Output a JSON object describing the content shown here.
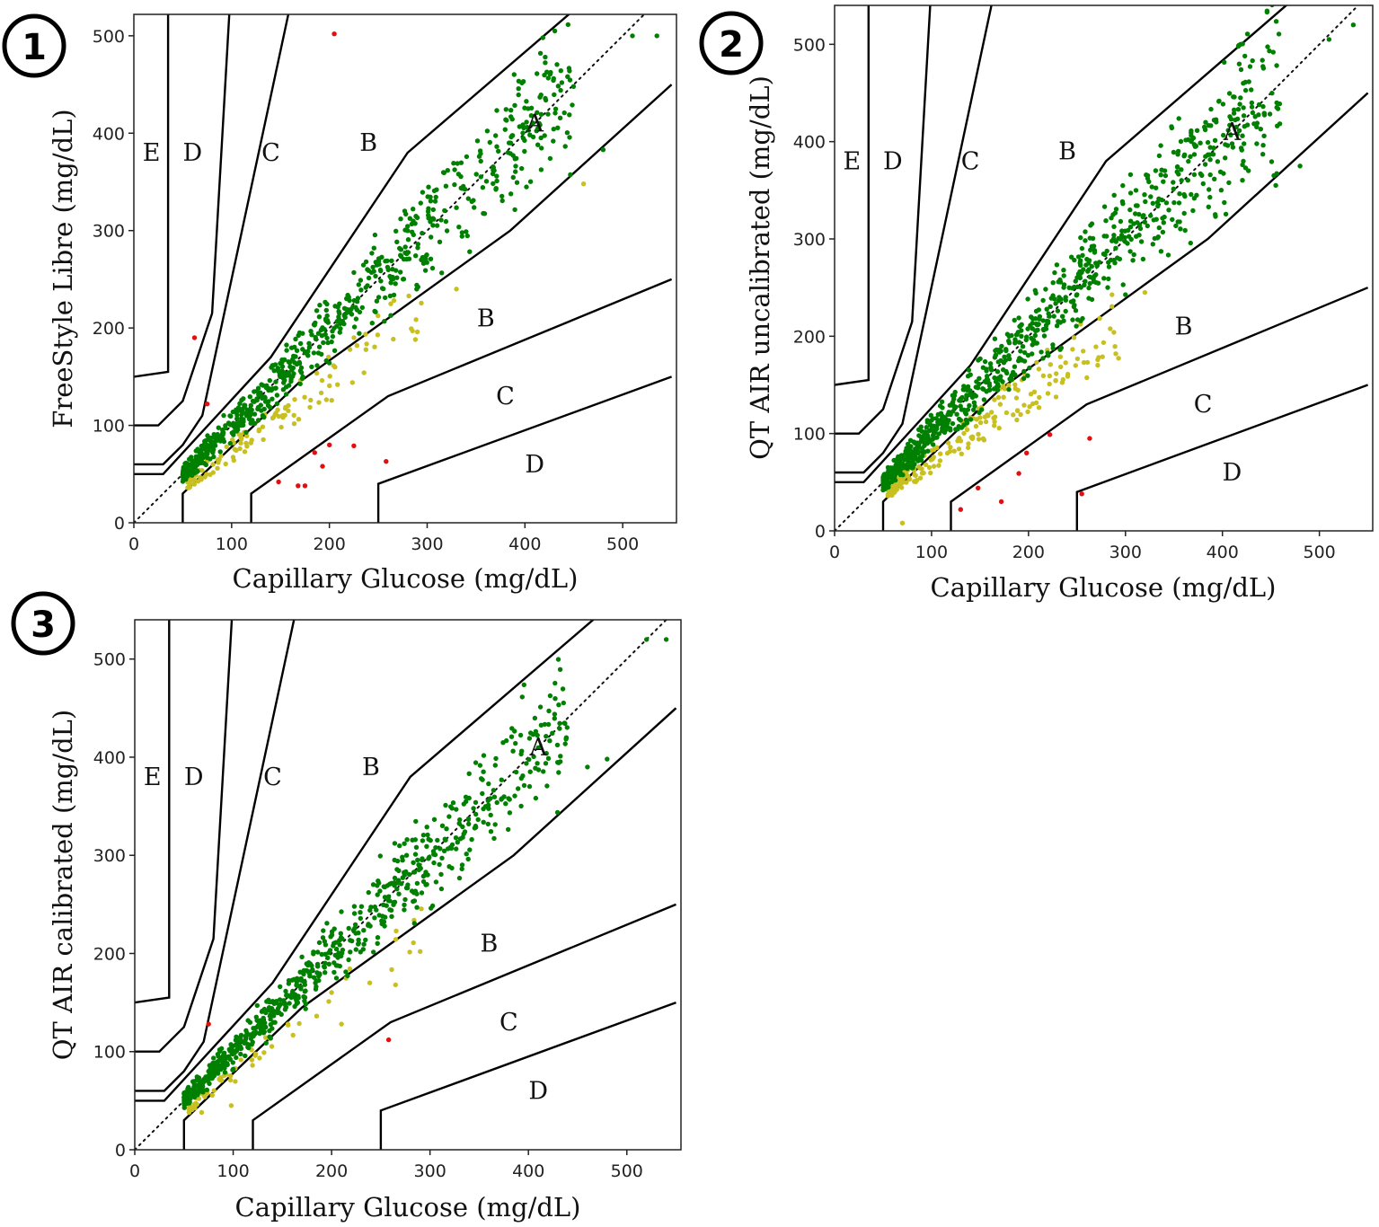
{
  "colors": {
    "zone_a": "#008000",
    "zone_b": "#c8c020",
    "zone_c_or_worse": "#e01010",
    "boundary": "#000000"
  },
  "chart_data": [
    {
      "type": "scatter",
      "badge": "1",
      "title": "",
      "xlabel": "Capillary Glucose (mg/dL)",
      "ylabel": "FreeStyle Libre (mg/dL)",
      "xlim": [
        0,
        555
      ],
      "ylim": [
        0,
        522
      ],
      "xticks": [
        0,
        100,
        200,
        300,
        400,
        500
      ],
      "yticks": [
        0,
        100,
        200,
        300,
        400,
        500
      ],
      "diagonal": [
        [
          0,
          0
        ],
        [
          540,
          540
        ]
      ],
      "zone_boundaries": [
        [
          [
            0,
            150
          ],
          [
            35,
            155
          ],
          [
            35,
            1000
          ]
        ],
        [
          [
            0,
            100
          ],
          [
            25,
            100
          ],
          [
            50,
            125
          ],
          [
            80,
            215
          ],
          [
            125,
            1000
          ]
        ],
        [
          [
            0,
            60
          ],
          [
            30,
            60
          ],
          [
            50,
            80
          ],
          [
            70,
            110
          ],
          [
            260,
            1000
          ]
        ],
        [
          [
            0,
            50
          ],
          [
            30,
            50
          ],
          [
            140,
            170
          ],
          [
            280,
            380
          ],
          [
            1000,
            1000
          ]
        ],
        [
          [
            50,
            0
          ],
          [
            50,
            30
          ],
          [
            170,
            145
          ],
          [
            385,
            300
          ],
          [
            550,
            450
          ]
        ],
        [
          [
            120,
            0
          ],
          [
            120,
            30
          ],
          [
            260,
            130
          ],
          [
            550,
            250
          ]
        ],
        [
          [
            250,
            0
          ],
          [
            250,
            40
          ],
          [
            550,
            150
          ]
        ]
      ],
      "zone_labels": [
        {
          "text": "E",
          "x": 18,
          "y": 380
        },
        {
          "text": "D",
          "x": 60,
          "y": 380
        },
        {
          "text": "C",
          "x": 140,
          "y": 380
        },
        {
          "text": "B",
          "x": 240,
          "y": 390
        },
        {
          "text": "A",
          "x": 410,
          "y": 410
        },
        {
          "text": "B",
          "x": 360,
          "y": 210
        },
        {
          "text": "C",
          "x": 380,
          "y": 130
        },
        {
          "text": "D",
          "x": 410,
          "y": 60
        }
      ],
      "scatter_model": {
        "n_green": 720,
        "seed": 11,
        "spread": 0.085,
        "x_max": 450,
        "n_yellow": 120,
        "yellow_low": 0.62,
        "yellow_high": 0.86
      },
      "highlight_points": [
        {
          "zone": "A",
          "x": 510,
          "y": 500
        },
        {
          "zone": "A",
          "x": 535,
          "y": 500
        },
        {
          "zone": "A",
          "x": 480,
          "y": 383
        },
        {
          "zone": "B",
          "x": 460,
          "y": 348
        },
        {
          "zone": "B",
          "x": 290,
          "y": 196
        },
        {
          "zone": "B",
          "x": 330,
          "y": 240
        },
        {
          "zone": "C",
          "x": 205,
          "y": 502
        },
        {
          "zone": "C",
          "x": 62,
          "y": 190
        },
        {
          "zone": "C",
          "x": 75,
          "y": 122
        },
        {
          "zone": "C",
          "x": 148,
          "y": 42
        },
        {
          "zone": "C",
          "x": 168,
          "y": 38
        },
        {
          "zone": "C",
          "x": 175,
          "y": 38
        },
        {
          "zone": "C",
          "x": 185,
          "y": 72
        },
        {
          "zone": "C",
          "x": 193,
          "y": 58
        },
        {
          "zone": "C",
          "x": 200,
          "y": 80
        },
        {
          "zone": "C",
          "x": 225,
          "y": 79
        },
        {
          "zone": "C",
          "x": 258,
          "y": 63
        }
      ]
    },
    {
      "type": "scatter",
      "badge": "2",
      "title": "",
      "xlabel": "Capillary Glucose (mg/dL)",
      "ylabel": "QT AIR uncalibrated (mg/dL)",
      "xlim": [
        0,
        555
      ],
      "ylim": [
        0,
        540
      ],
      "xticks": [
        0,
        100,
        200,
        300,
        400,
        500
      ],
      "yticks": [
        0,
        100,
        200,
        300,
        400,
        500
      ],
      "diagonal": [
        [
          0,
          0
        ],
        [
          540,
          540
        ]
      ],
      "zone_boundaries": [
        [
          [
            0,
            150
          ],
          [
            35,
            155
          ],
          [
            35,
            1000
          ]
        ],
        [
          [
            0,
            100
          ],
          [
            25,
            100
          ],
          [
            50,
            125
          ],
          [
            80,
            215
          ],
          [
            125,
            1000
          ]
        ],
        [
          [
            0,
            60
          ],
          [
            30,
            60
          ],
          [
            50,
            80
          ],
          [
            70,
            110
          ],
          [
            260,
            1000
          ]
        ],
        [
          [
            0,
            50
          ],
          [
            30,
            50
          ],
          [
            140,
            170
          ],
          [
            280,
            380
          ],
          [
            1000,
            1000
          ]
        ],
        [
          [
            50,
            0
          ],
          [
            50,
            30
          ],
          [
            170,
            145
          ],
          [
            385,
            300
          ],
          [
            550,
            450
          ]
        ],
        [
          [
            120,
            0
          ],
          [
            120,
            30
          ],
          [
            260,
            130
          ],
          [
            550,
            250
          ]
        ],
        [
          [
            250,
            0
          ],
          [
            250,
            40
          ],
          [
            550,
            150
          ]
        ]
      ],
      "zone_labels": [
        {
          "text": "E",
          "x": 18,
          "y": 380
        },
        {
          "text": "D",
          "x": 60,
          "y": 380
        },
        {
          "text": "C",
          "x": 140,
          "y": 380
        },
        {
          "text": "B",
          "x": 240,
          "y": 390
        },
        {
          "text": "A",
          "x": 410,
          "y": 410
        },
        {
          "text": "B",
          "x": 360,
          "y": 210
        },
        {
          "text": "C",
          "x": 380,
          "y": 130
        },
        {
          "text": "D",
          "x": 410,
          "y": 60
        }
      ],
      "scatter_model": {
        "n_green": 900,
        "seed": 23,
        "spread": 0.09,
        "x_max": 460,
        "n_yellow": 200,
        "yellow_low": 0.6,
        "yellow_high": 0.86
      },
      "highlight_points": [
        {
          "zone": "A",
          "x": 535,
          "y": 520
        },
        {
          "zone": "A",
          "x": 510,
          "y": 505
        },
        {
          "zone": "A",
          "x": 480,
          "y": 375
        },
        {
          "zone": "A",
          "x": 455,
          "y": 355
        },
        {
          "zone": "B",
          "x": 290,
          "y": 182
        },
        {
          "zone": "B",
          "x": 320,
          "y": 245
        },
        {
          "zone": "B",
          "x": 70,
          "y": 8
        },
        {
          "zone": "C",
          "x": 130,
          "y": 22
        },
        {
          "zone": "C",
          "x": 148,
          "y": 44
        },
        {
          "zone": "C",
          "x": 172,
          "y": 30
        },
        {
          "zone": "C",
          "x": 190,
          "y": 59
        },
        {
          "zone": "C",
          "x": 198,
          "y": 80
        },
        {
          "zone": "C",
          "x": 222,
          "y": 99
        },
        {
          "zone": "C",
          "x": 263,
          "y": 95
        },
        {
          "zone": "C",
          "x": 255,
          "y": 38
        }
      ]
    },
    {
      "type": "scatter",
      "badge": "3",
      "title": "",
      "xlabel": "Capillary Glucose (mg/dL)",
      "ylabel": "QT AIR calibrated (mg/dL)",
      "xlim": [
        0,
        555
      ],
      "ylim": [
        0,
        540
      ],
      "xticks": [
        0,
        100,
        200,
        300,
        400,
        500
      ],
      "yticks": [
        0,
        100,
        200,
        300,
        400,
        500
      ],
      "diagonal": [
        [
          0,
          0
        ],
        [
          540,
          540
        ]
      ],
      "zone_boundaries": [
        [
          [
            0,
            150
          ],
          [
            35,
            155
          ],
          [
            35,
            1000
          ]
        ],
        [
          [
            0,
            100
          ],
          [
            25,
            100
          ],
          [
            50,
            125
          ],
          [
            80,
            215
          ],
          [
            125,
            1000
          ]
        ],
        [
          [
            0,
            60
          ],
          [
            30,
            60
          ],
          [
            50,
            80
          ],
          [
            70,
            110
          ],
          [
            260,
            1000
          ]
        ],
        [
          [
            0,
            50
          ],
          [
            30,
            50
          ],
          [
            140,
            170
          ],
          [
            280,
            380
          ],
          [
            1000,
            1000
          ]
        ],
        [
          [
            50,
            0
          ],
          [
            50,
            30
          ],
          [
            170,
            145
          ],
          [
            385,
            300
          ],
          [
            550,
            450
          ]
        ],
        [
          [
            120,
            0
          ],
          [
            120,
            30
          ],
          [
            260,
            130
          ],
          [
            550,
            250
          ]
        ],
        [
          [
            250,
            0
          ],
          [
            250,
            40
          ],
          [
            550,
            150
          ]
        ]
      ],
      "zone_labels": [
        {
          "text": "E",
          "x": 18,
          "y": 380
        },
        {
          "text": "D",
          "x": 60,
          "y": 380
        },
        {
          "text": "C",
          "x": 140,
          "y": 380
        },
        {
          "text": "B",
          "x": 240,
          "y": 390
        },
        {
          "text": "A",
          "x": 410,
          "y": 410
        },
        {
          "text": "B",
          "x": 360,
          "y": 210
        },
        {
          "text": "C",
          "x": 380,
          "y": 130
        },
        {
          "text": "D",
          "x": 410,
          "y": 60
        }
      ],
      "scatter_model": {
        "n_green": 760,
        "seed": 37,
        "spread": 0.075,
        "x_max": 440,
        "n_yellow": 60,
        "yellow_low": 0.68,
        "yellow_high": 0.86
      },
      "highlight_points": [
        {
          "zone": "A",
          "x": 540,
          "y": 520
        },
        {
          "zone": "A",
          "x": 520,
          "y": 520
        },
        {
          "zone": "A",
          "x": 480,
          "y": 398
        },
        {
          "zone": "A",
          "x": 460,
          "y": 390
        },
        {
          "zone": "B",
          "x": 290,
          "y": 202
        },
        {
          "zone": "B",
          "x": 265,
          "y": 168
        },
        {
          "zone": "B",
          "x": 210,
          "y": 128
        },
        {
          "zone": "B",
          "x": 68,
          "y": 38
        },
        {
          "zone": "B",
          "x": 98,
          "y": 45
        },
        {
          "zone": "C",
          "x": 258,
          "y": 112
        },
        {
          "zone": "C",
          "x": 75,
          "y": 128
        }
      ]
    }
  ]
}
